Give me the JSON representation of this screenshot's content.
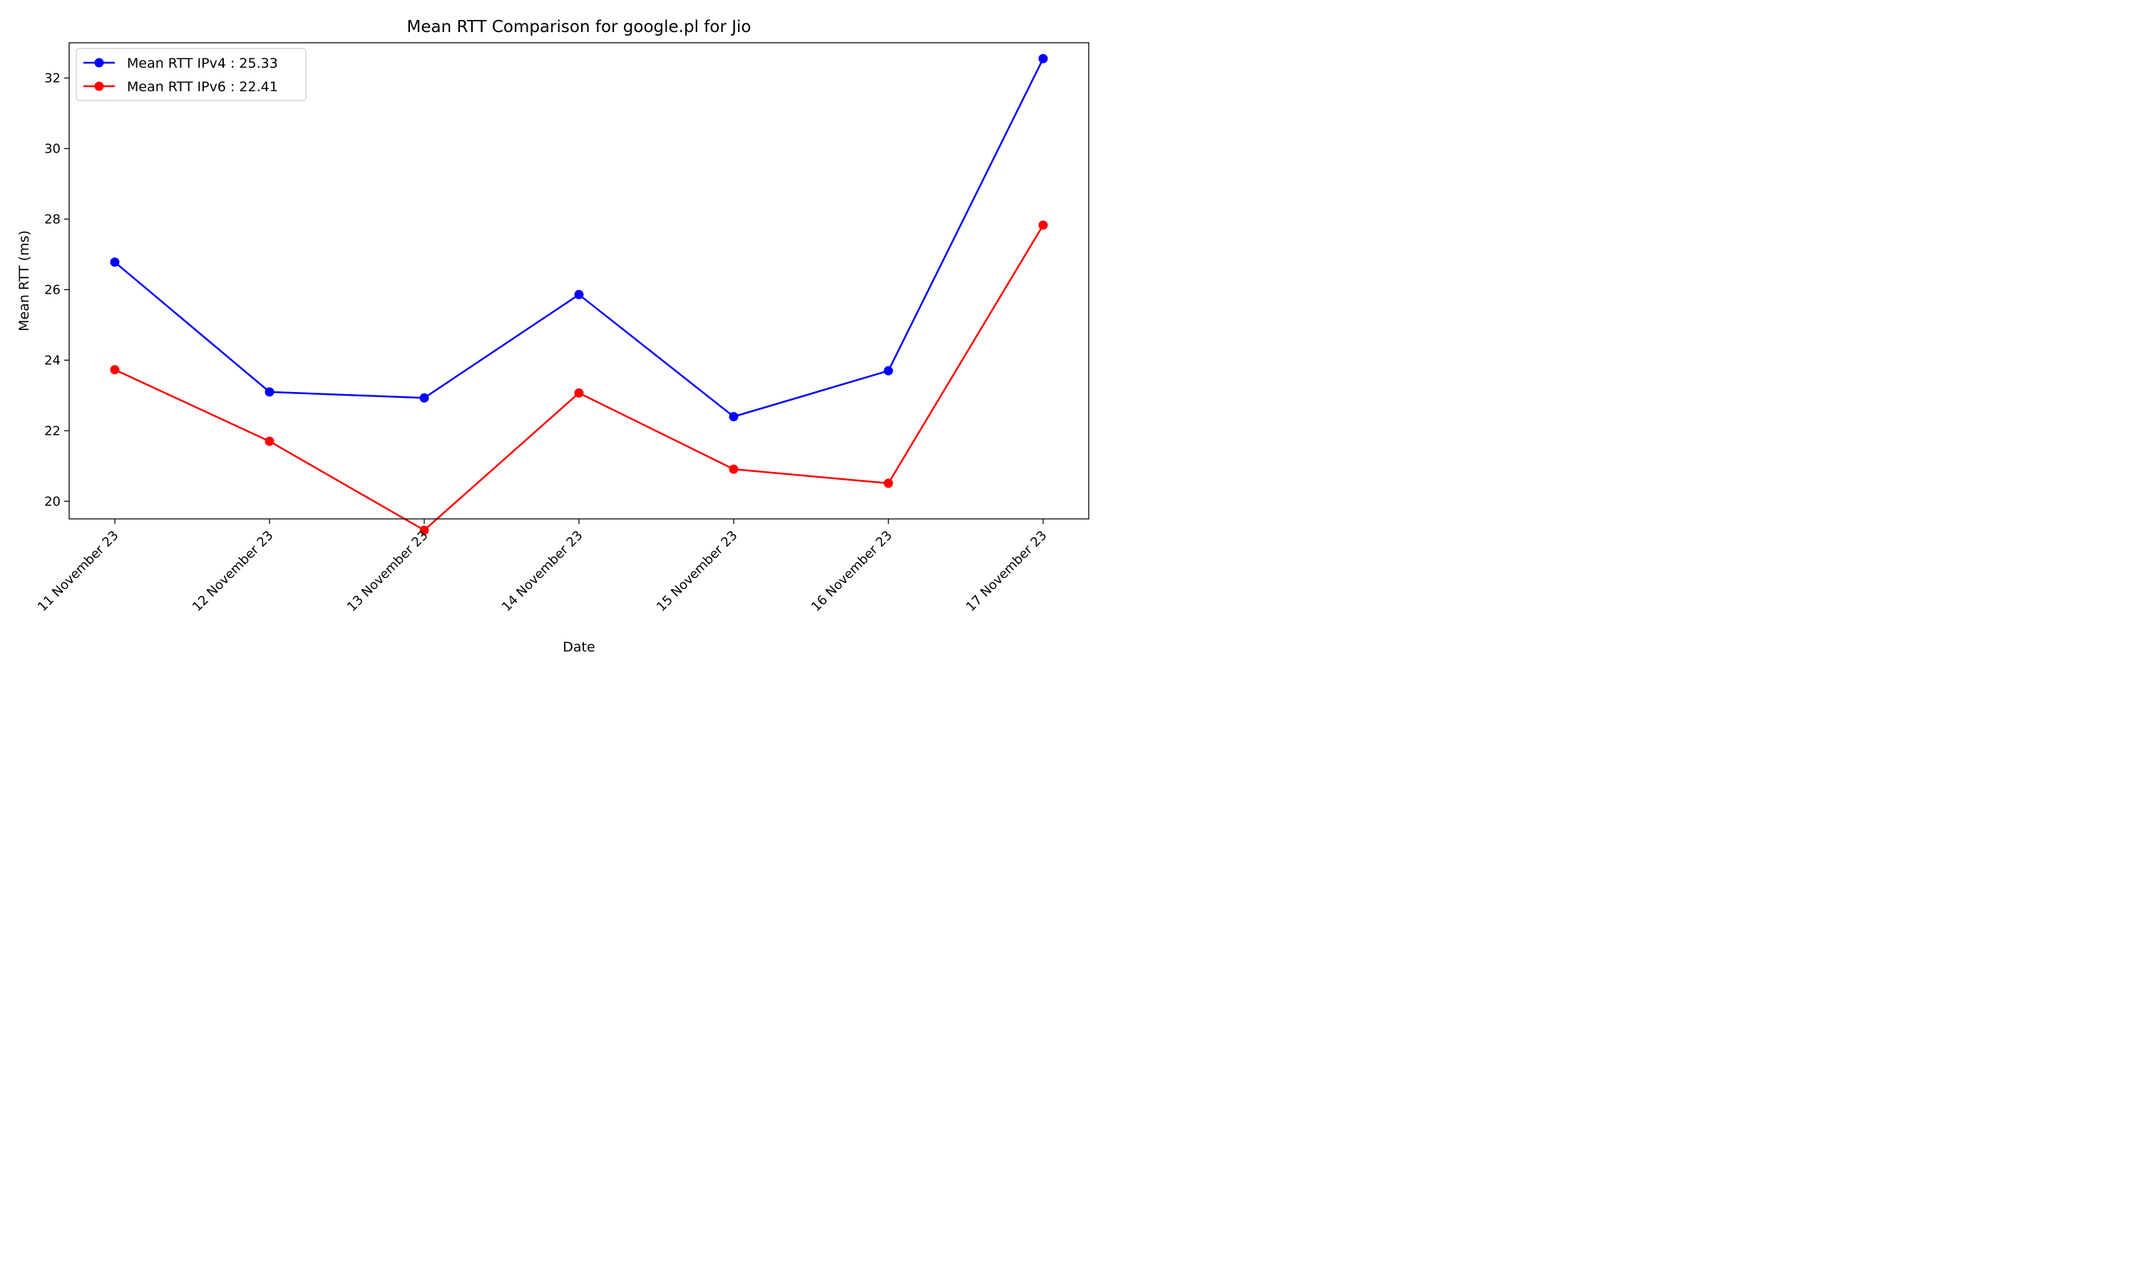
{
  "chart_data": {
    "type": "line",
    "title": "Mean RTT Comparison for google.pl for Jio",
    "xlabel": "Date",
    "ylabel": "Mean RTT (ms)",
    "categories": [
      "11 November 23",
      "12 November 23",
      "13 November 23",
      "14 November 23",
      "15 November 23",
      "16 November 23",
      "17 November 23"
    ],
    "ylim": [
      19.5,
      33.0
    ],
    "yticks": [
      20,
      22,
      24,
      26,
      28,
      30,
      32
    ],
    "grid": false,
    "legend_position": "top-left",
    "series": [
      {
        "name": "Mean RTT IPv4 : 25.33",
        "color": "#0000ff",
        "marker": "circle",
        "values": [
          26.78,
          23.1,
          22.93,
          25.86,
          22.4,
          23.7,
          32.55
        ]
      },
      {
        "name": "Mean RTT IPv6 : 22.41",
        "color": "#ff0000",
        "marker": "circle",
        "values": [
          23.73,
          21.7,
          19.18,
          23.07,
          20.91,
          20.51,
          27.83
        ]
      }
    ]
  }
}
